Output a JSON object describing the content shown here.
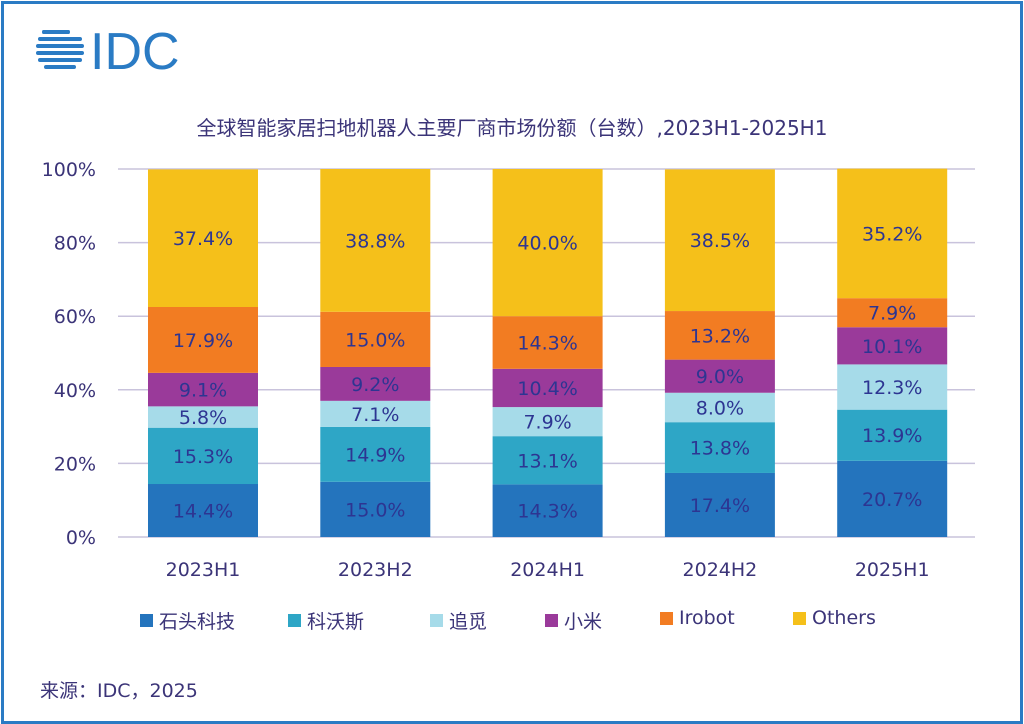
{
  "logo_text": "IDC",
  "source": "来源：IDC，2025",
  "chart_data": {
    "type": "bar",
    "stacked": true,
    "title": "全球智能家居扫地机器人主要厂商市场份额（台数）,2023H1-2025H1",
    "xlabel": "",
    "ylabel": "",
    "ylim": [
      0,
      100
    ],
    "yticks": [
      "0%",
      "20%",
      "40%",
      "60%",
      "80%",
      "100%"
    ],
    "grid": true,
    "legend_position": "bottom",
    "categories": [
      "2023H1",
      "2023H2",
      "2024H1",
      "2024H2",
      "2025H1"
    ],
    "series": [
      {
        "name": "石头科技",
        "color": "#2474bd",
        "values": [
          14.4,
          15.0,
          14.3,
          17.4,
          20.7
        ]
      },
      {
        "name": "科沃斯",
        "color": "#2ea6c6",
        "values": [
          15.3,
          14.9,
          13.1,
          13.8,
          13.9
        ]
      },
      {
        "name": "追觅",
        "color": "#a6dbe9",
        "values": [
          5.8,
          7.1,
          7.9,
          8.0,
          12.3
        ]
      },
      {
        "name": "小米",
        "color": "#9a3a9a",
        "values": [
          9.1,
          9.2,
          10.4,
          9.0,
          10.1
        ]
      },
      {
        "name": "Irobot",
        "color": "#f27c22",
        "values": [
          17.9,
          15.0,
          14.3,
          13.2,
          7.9
        ]
      },
      {
        "name": "Others",
        "color": "#f5c01a",
        "values": [
          37.4,
          38.8,
          40.0,
          38.5,
          35.2
        ]
      }
    ],
    "label_color": "#2d3592"
  }
}
